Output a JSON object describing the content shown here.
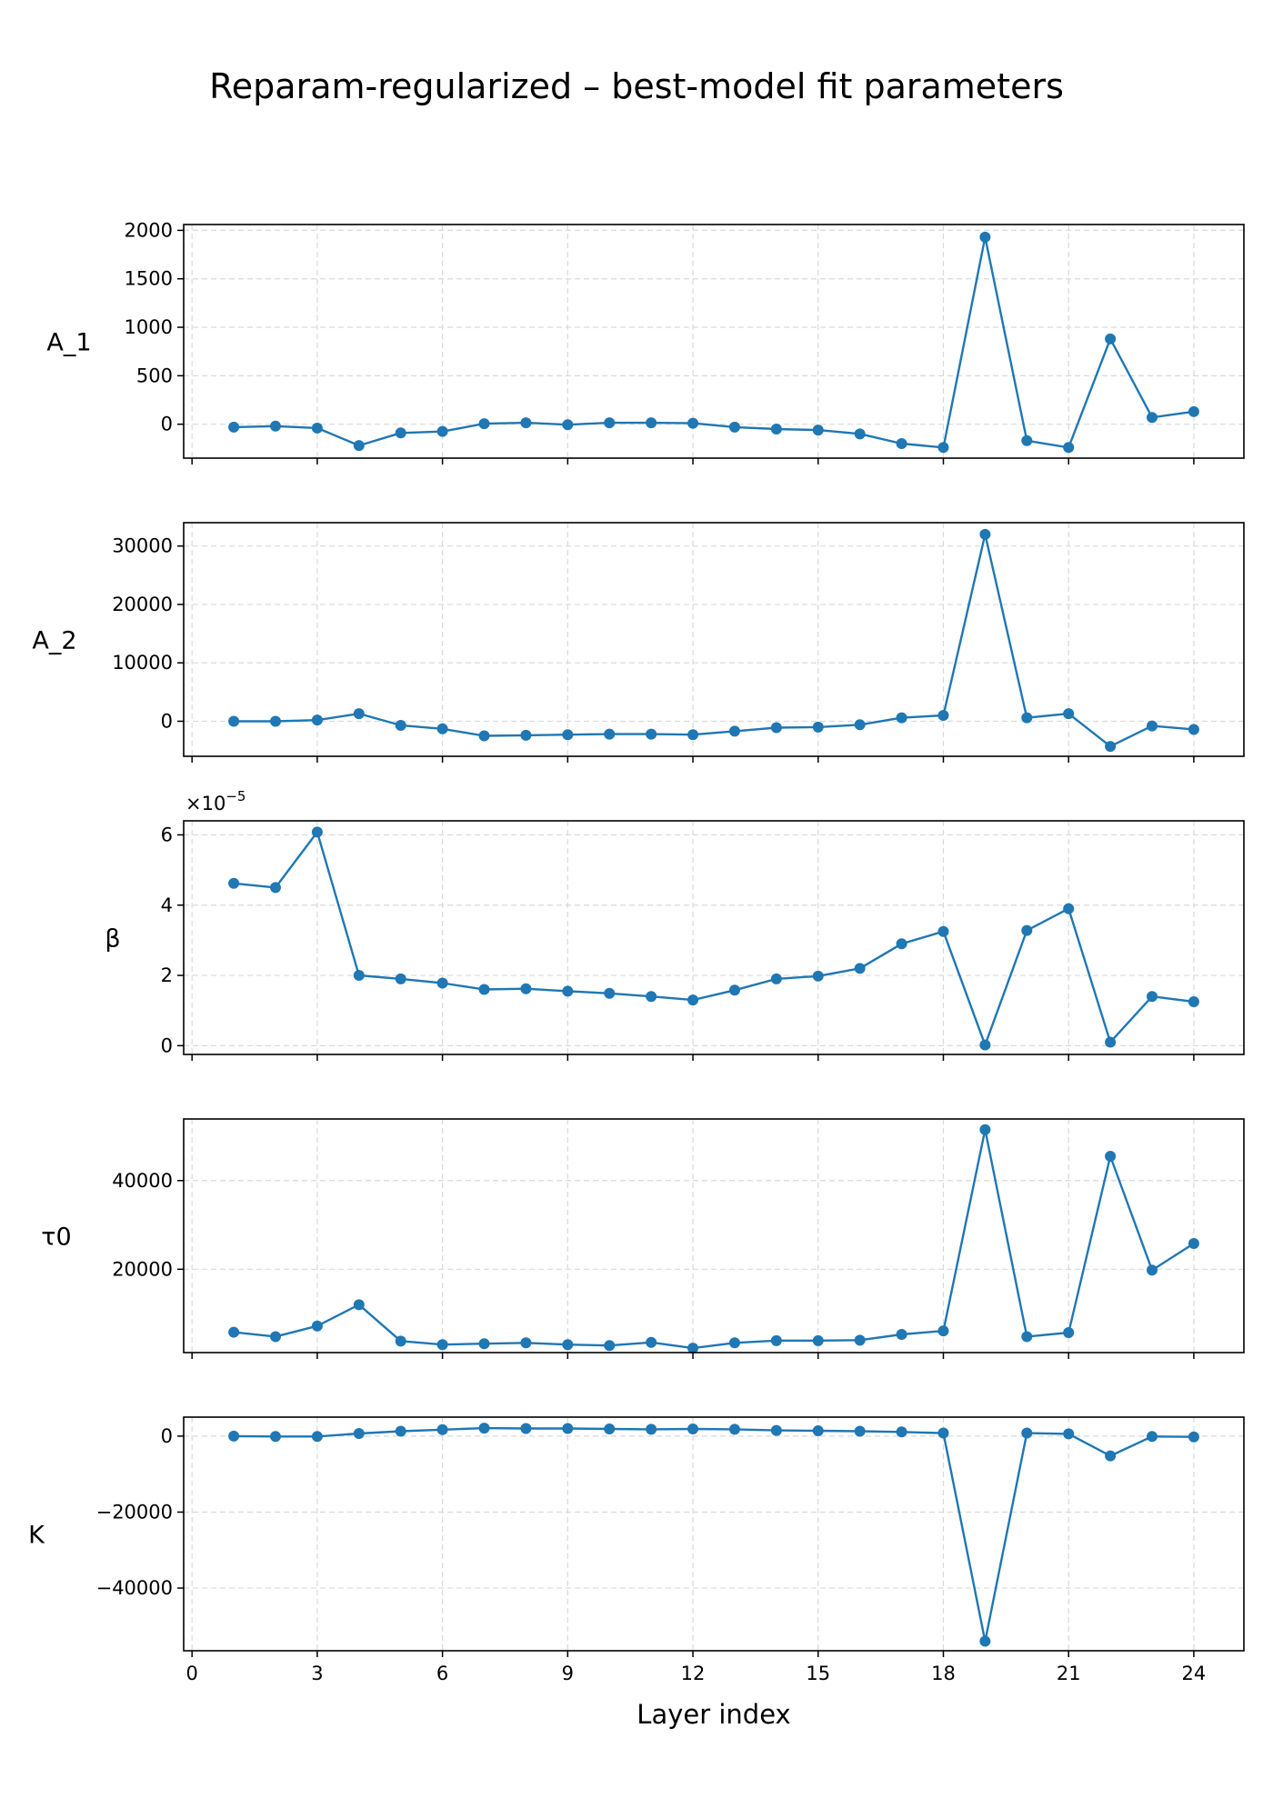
{
  "title": "Reparam-regularized – best-model fit parameters",
  "xlabel": "Layer index",
  "chart_data": [
    {
      "type": "line",
      "ylabel": "A_1",
      "x": [
        1,
        2,
        3,
        4,
        5,
        6,
        7,
        8,
        9,
        10,
        11,
        12,
        13,
        14,
        15,
        16,
        17,
        18,
        19,
        20,
        21,
        22,
        23,
        24
      ],
      "values": [
        -30,
        -20,
        -40,
        -220,
        -90,
        -75,
        5,
        15,
        -5,
        15,
        15,
        10,
        -30,
        -50,
        -60,
        -100,
        -200,
        -240,
        1930,
        -170,
        -240,
        880,
        70,
        130
      ],
      "xlim": [
        -0.2,
        25.2
      ],
      "ylim": [
        -350,
        2060
      ],
      "xticks": [
        0,
        3,
        6,
        9,
        12,
        15,
        18,
        21,
        24
      ],
      "yticks": [
        0,
        500,
        1000,
        1500,
        2000
      ],
      "ytick_labels": [
        "0",
        "500",
        "1000",
        "1500",
        "2000"
      ],
      "grid": true
    },
    {
      "type": "line",
      "ylabel": "A_2",
      "x": [
        1,
        2,
        3,
        4,
        5,
        6,
        7,
        8,
        9,
        10,
        11,
        12,
        13,
        14,
        15,
        16,
        17,
        18,
        19,
        20,
        21,
        22,
        23,
        24
      ],
      "values": [
        0,
        0,
        200,
        1300,
        -700,
        -1300,
        -2500,
        -2400,
        -2300,
        -2200,
        -2200,
        -2300,
        -1700,
        -1100,
        -1000,
        -600,
        600,
        1000,
        32000,
        600,
        1300,
        -4300,
        -800,
        -1400
      ],
      "xlim": [
        -0.2,
        25.2
      ],
      "ylim": [
        -6000,
        34000
      ],
      "xticks": [
        0,
        3,
        6,
        9,
        12,
        15,
        18,
        21,
        24
      ],
      "yticks": [
        0,
        10000,
        20000,
        30000
      ],
      "ytick_labels": [
        "0",
        "10000",
        "20000",
        "30000"
      ],
      "grid": true
    },
    {
      "type": "line",
      "ylabel": "β",
      "scale_label": "×10−5",
      "x": [
        1,
        2,
        3,
        4,
        5,
        6,
        7,
        8,
        9,
        10,
        11,
        12,
        13,
        14,
        15,
        16,
        17,
        18,
        19,
        20,
        21,
        22,
        23,
        24
      ],
      "values": [
        4.62,
        4.5,
        6.08,
        2.0,
        1.9,
        1.78,
        1.6,
        1.62,
        1.55,
        1.49,
        1.4,
        1.3,
        1.58,
        1.9,
        1.98,
        2.2,
        2.9,
        3.25,
        0.02,
        3.28,
        3.9,
        0.1,
        1.4,
        1.25
      ],
      "xlim": [
        -0.2,
        25.2
      ],
      "ylim": [
        -0.25,
        6.4
      ],
      "xticks": [
        0,
        3,
        6,
        9,
        12,
        15,
        18,
        21,
        24
      ],
      "yticks": [
        0,
        2,
        4,
        6
      ],
      "ytick_labels": [
        "0",
        "2",
        "4",
        "6"
      ],
      "grid": true
    },
    {
      "type": "line",
      "ylabel": "τ0",
      "x": [
        1,
        2,
        3,
        4,
        5,
        6,
        7,
        8,
        9,
        10,
        11,
        12,
        13,
        14,
        15,
        16,
        17,
        18,
        19,
        20,
        21,
        22,
        23,
        24
      ],
      "values": [
        5800,
        4800,
        7200,
        12000,
        3800,
        3000,
        3200,
        3400,
        3000,
        2800,
        3500,
        2200,
        3400,
        3900,
        3900,
        4000,
        5300,
        6100,
        51500,
        4800,
        5700,
        45500,
        19800,
        25800
      ],
      "xlim": [
        -0.2,
        25.2
      ],
      "ylim": [
        1200,
        53900
      ],
      "xticks": [
        0,
        3,
        6,
        9,
        12,
        15,
        18,
        21,
        24
      ],
      "yticks": [
        20000,
        40000
      ],
      "ytick_labels": [
        "20000",
        "40000"
      ],
      "grid": true
    },
    {
      "type": "line",
      "ylabel": "K",
      "x": [
        1,
        2,
        3,
        4,
        5,
        6,
        7,
        8,
        9,
        10,
        11,
        12,
        13,
        14,
        15,
        16,
        17,
        18,
        19,
        20,
        21,
        22,
        23,
        24
      ],
      "values": [
        0,
        -100,
        -100,
        700,
        1300,
        1700,
        2100,
        2000,
        2000,
        1900,
        1800,
        1900,
        1800,
        1500,
        1400,
        1300,
        1100,
        800,
        -54000,
        800,
        600,
        -5200,
        -100,
        -200
      ],
      "xlim": [
        -0.2,
        25.2
      ],
      "ylim": [
        -56500,
        5000
      ],
      "xticks": [
        0,
        3,
        6,
        9,
        12,
        15,
        18,
        21,
        24
      ],
      "xtick_labels": [
        "0",
        "3",
        "6",
        "9",
        "12",
        "15",
        "18",
        "21",
        "24"
      ],
      "yticks": [
        0,
        -20000,
        -40000
      ],
      "ytick_labels": [
        "0",
        "−20000",
        "−40000"
      ],
      "grid": true
    }
  ],
  "colors": {
    "series": "#1f77b4",
    "grid": "#d9d9d9",
    "axes": "#000000"
  }
}
